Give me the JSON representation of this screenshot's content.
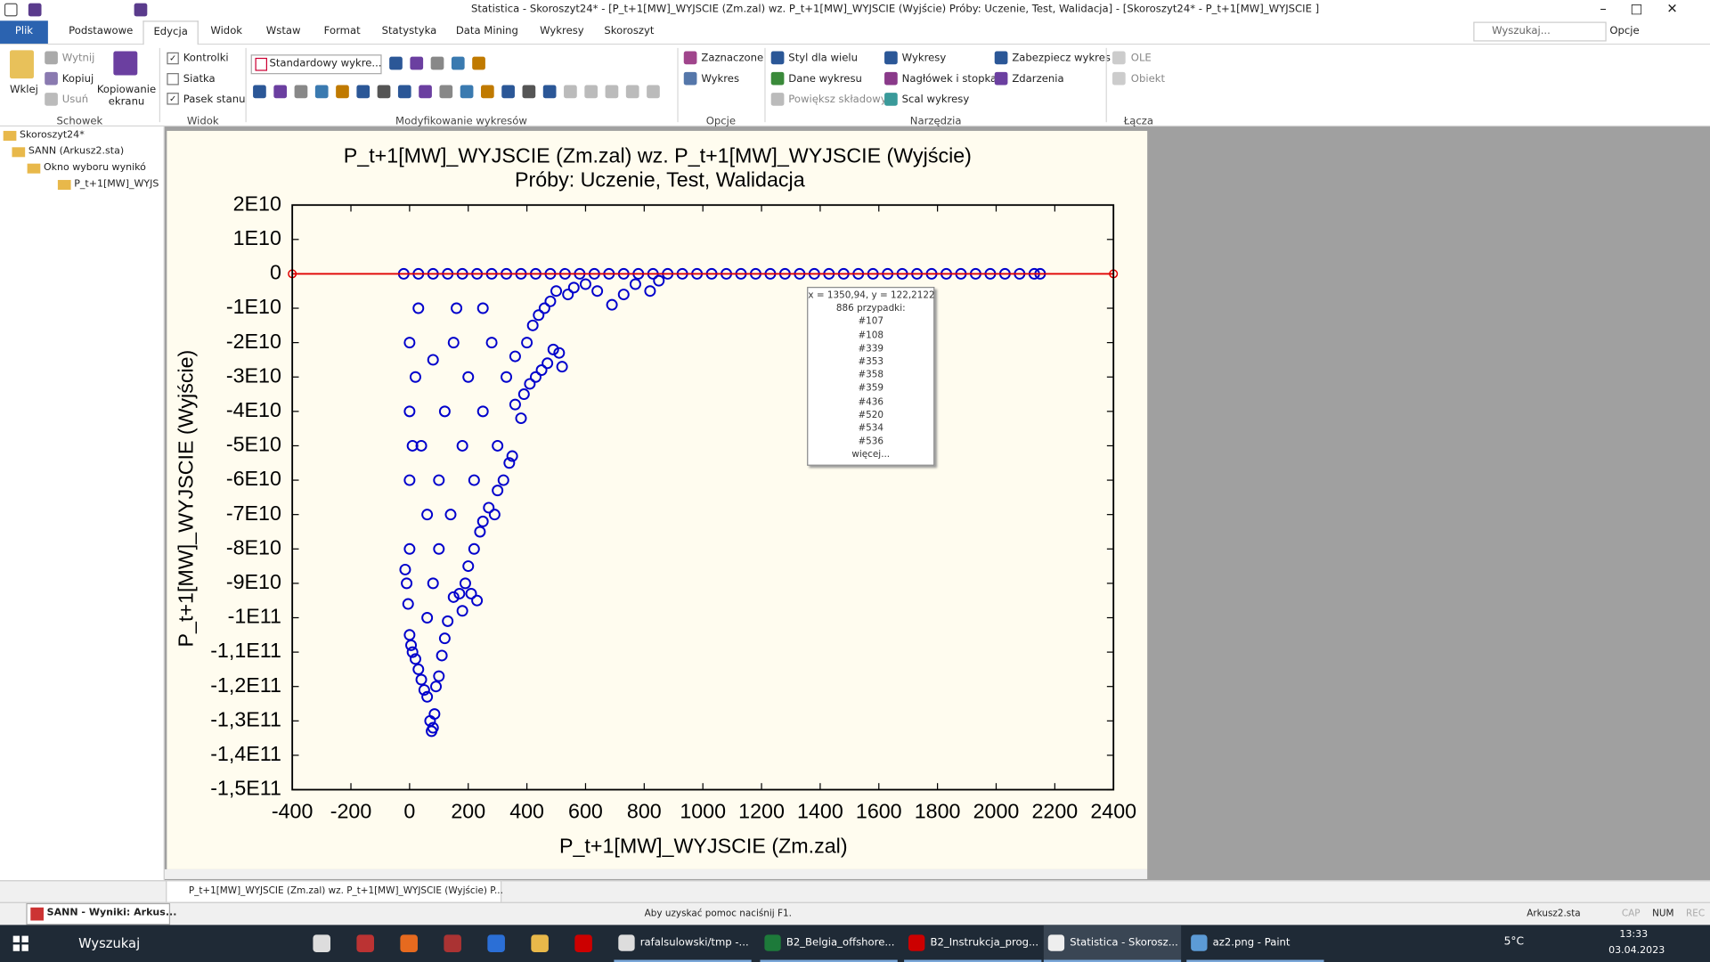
{
  "titlebar": {
    "title": "Statistica - Skoroszyt24* - [P_t+1[MW]_WYJSCIE (Zm.zal) wz. P_t+1[MW]_WYJSCIE (Wyjście)  Próby: Uczenie, Test, Walidacja] - [Skoroszyt24* - P_t+1[MW]_WYJSCIE ]"
  },
  "menu": {
    "tabs": [
      "Plik",
      "Podstawowe",
      "Edycja",
      "Widok",
      "Wstaw",
      "Format",
      "Statystyka",
      "Data Mining",
      "Wykresy",
      "Skoroszyt"
    ],
    "search": "Wyszukaj...",
    "options": "Opcje"
  },
  "ribbon": {
    "clipboard": {
      "paste": "Wklej",
      "cut": "Wytnij",
      "copy": "Kopiuj",
      "delete": "Usuń",
      "screen_copy": "Kopiowanie ekranu",
      "label": "Schowek"
    },
    "view": {
      "controls": "Kontrolki",
      "grid": "Siatka",
      "statusbar": "Pasek stanu",
      "label": "Widok"
    },
    "modify": {
      "style": "Standardowy wykre...",
      "label": "Modyfikowanie wykresów"
    },
    "options": {
      "selected": "Zaznaczone",
      "graph": "Wykres",
      "label": "Opcje"
    },
    "tools": {
      "multi_style": "Styl dla wielu",
      "graph_data": "Dane wykresu",
      "zoom": "Powiększ składowy",
      "graphs": "Wykresy",
      "header": "Nagłówek i stopka",
      "merge": "Scal wykresy",
      "protect": "Zabezpiecz wykres",
      "events": "Zdarzenia",
      "label": "Narzędzia"
    },
    "links": {
      "ole": "OLE",
      "object": "Obiekt",
      "label": "Łącza"
    }
  },
  "tree": [
    "Skoroszyt24*",
    "SANN (Arkusz2.sta)",
    "Okno wyboru wynikó",
    "P_t+1[MW]_WYJS"
  ],
  "tooltip": [
    "x = 1350,94, y = 122,2122",
    "886 przypadki:",
    "#107",
    "#108",
    "#339",
    "#353",
    "#358",
    "#359",
    "#436",
    "#520",
    "#534",
    "#536",
    "więcej..."
  ],
  "doc_tab": "P_t+1[MW]_WYJSCIE (Zm.zal) wz. P_t+1[MW]_WYJSCIE (Wyjście)  P...",
  "status": {
    "left": "SANN - Wyniki: Arkus...",
    "help": "Aby uzyskać pomoc naciśnij F1.",
    "file": "Arkusz2.sta",
    "cap": "CAP",
    "num": "NUM",
    "rec": "REC"
  },
  "taskbar": {
    "search": "Wyszukaj",
    "apps": [
      "rafalsulowski/tmp -...",
      "B2_Belgia_offshore...",
      "B2_Instrukcja_prog...",
      "Statistica - Skorosz...",
      "az2.png - Paint"
    ],
    "weather": "5°C",
    "time": "13:33",
    "date": "03.04.2023"
  },
  "chart_data": {
    "type": "scatter",
    "title": "P_t+1[MW]_WYJSCIE (Zm.zal) wz. P_t+1[MW]_WYJSCIE (Wyjście)",
    "subtitle": "Próby: Uczenie, Test, Walidacja",
    "xlabel": "P_t+1[MW]_WYJSCIE (Zm.zal)",
    "ylabel": "P_t+1[MW]_WYJSCIE (Wyjście)",
    "color": "#0000cc",
    "reference_line": {
      "y": 0,
      "color": "#e00000"
    },
    "xlim": [
      -400,
      2400
    ],
    "xticks": [
      -400,
      -200,
      0,
      200,
      400,
      600,
      800,
      1000,
      1200,
      1400,
      1600,
      1800,
      2000,
      2200,
      2400
    ],
    "ylim": [
      -150000000000.0,
      20000000000.0
    ],
    "yticks": [
      {
        "value": 20000000000.0,
        "label": "2E10"
      },
      {
        "value": 10000000000.0,
        "label": "1E10"
      },
      0,
      {
        "value": -10000000000.0,
        "label": "-1E10"
      },
      {
        "value": -20000000000.0,
        "label": "-2E10"
      },
      {
        "value": -30000000000.0,
        "label": "-3E10"
      },
      {
        "value": -40000000000.0,
        "label": "-4E10"
      },
      {
        "value": -50000000000.0,
        "label": "-5E10"
      },
      {
        "value": -60000000000.0,
        "label": "-6E10"
      },
      {
        "value": -70000000000.0,
        "label": "-7E10"
      },
      {
        "value": -80000000000.0,
        "label": "-8E10"
      },
      {
        "value": -90000000000.0,
        "label": "-9E10"
      },
      {
        "value": -100000000000.0,
        "label": "-1E11"
      },
      {
        "value": -110000000000.0,
        "label": "-1,1E11"
      },
      {
        "value": -120000000000.0,
        "label": "-1,2E11"
      },
      {
        "value": -130000000000.0,
        "label": "-1,3E11"
      },
      {
        "value": -140000000000.0,
        "label": "-1,4E11"
      },
      {
        "value": -150000000000.0,
        "label": "-1,5E11"
      }
    ],
    "grid": false,
    "x": [
      -20,
      30,
      80,
      130,
      180,
      230,
      280,
      330,
      380,
      430,
      480,
      530,
      580,
      630,
      680,
      730,
      780,
      830,
      880,
      930,
      980,
      1030,
      1080,
      1130,
      1180,
      1230,
      1280,
      1330,
      1380,
      1430,
      1480,
      1530,
      1580,
      1630,
      1680,
      1730,
      1780,
      1830,
      1880,
      1930,
      1980,
      2030,
      2080,
      2130,
      2150,
      -15,
      -10,
      -5,
      0,
      5,
      10,
      20,
      30,
      40,
      50,
      60,
      70,
      75,
      80,
      85,
      90,
      100,
      110,
      120,
      130,
      150,
      170,
      180,
      190,
      200,
      210,
      230,
      220,
      240,
      250,
      270,
      290,
      300,
      320,
      340,
      300,
      350,
      380,
      360,
      390,
      410,
      430,
      450,
      470,
      490,
      510,
      520,
      360,
      400,
      420,
      440,
      460,
      480,
      500,
      540,
      560,
      600,
      640,
      690,
      730,
      770,
      820,
      850,
      0,
      0,
      0,
      0,
      20,
      40,
      60,
      80,
      100,
      120,
      150,
      180,
      200,
      250,
      60,
      100,
      140,
      30,
      80,
      220,
      280,
      330,
      160,
      250,
      10
    ],
    "y": [
      0,
      0,
      0,
      0,
      0,
      0,
      0,
      0,
      0,
      0,
      0,
      0,
      0,
      0,
      0,
      0,
      0,
      0,
      0,
      0,
      0,
      0,
      0,
      0,
      0,
      0,
      0,
      0,
      0,
      0,
      0,
      0,
      0,
      0,
      0,
      0,
      0,
      0,
      0,
      0,
      0,
      0,
      0,
      0,
      0,
      -86000000000.0,
      -90000000000.0,
      -96000000000.0,
      -105000000000.0,
      -108000000000.0,
      -110000000000.0,
      -112000000000.0,
      -115000000000.0,
      -118000000000.0,
      -121000000000.0,
      -123000000000.0,
      -130000000000.0,
      -133000000000.0,
      -132000000000.0,
      -128000000000.0,
      -120000000000.0,
      -117000000000.0,
      -111000000000.0,
      -106000000000.0,
      -101000000000.0,
      -94000000000.0,
      -93000000000.0,
      -98000000000.0,
      -90000000000.0,
      -85000000000.0,
      -93000000000.0,
      -95000000000.0,
      -80000000000.0,
      -75000000000.0,
      -72000000000.0,
      -68000000000.0,
      -70000000000.0,
      -63000000000.0,
      -60000000000.0,
      -55000000000.0,
      -50000000000.0,
      -53000000000.0,
      -42000000000.0,
      -38000000000.0,
      -35000000000.0,
      -32000000000.0,
      -30000000000.0,
      -28000000000.0,
      -26000000000.0,
      -22000000000.0,
      -23000000000.0,
      -27000000000.0,
      -24000000000.0,
      -20000000000.0,
      -15000000000.0,
      -12000000000.0,
      -10000000000.0,
      -8000000000.0,
      -5000000000.0,
      -6000000000.0,
      -4000000000.0,
      -3000000000.0,
      -5000000000.0,
      -9000000000.0,
      -6000000000.0,
      -3000000000.0,
      -5000000000.0,
      -2000000000.0,
      -20000000000.0,
      -40000000000.0,
      -60000000000.0,
      -80000000000.0,
      -30000000000.0,
      -50000000000.0,
      -70000000000.0,
      -90000000000.0,
      -60000000000.0,
      -40000000000.0,
      -20000000000.0,
      -50000000000.0,
      -30000000000.0,
      -40000000000.0,
      -100000000000.0,
      -80000000000.0,
      -70000000000.0,
      -10000000000.0,
      -25000000000.0,
      -60000000000.0,
      -20000000000.0,
      -30000000000.0,
      -10000000000.0,
      -10000000000.0,
      -50000000000.0
    ]
  }
}
